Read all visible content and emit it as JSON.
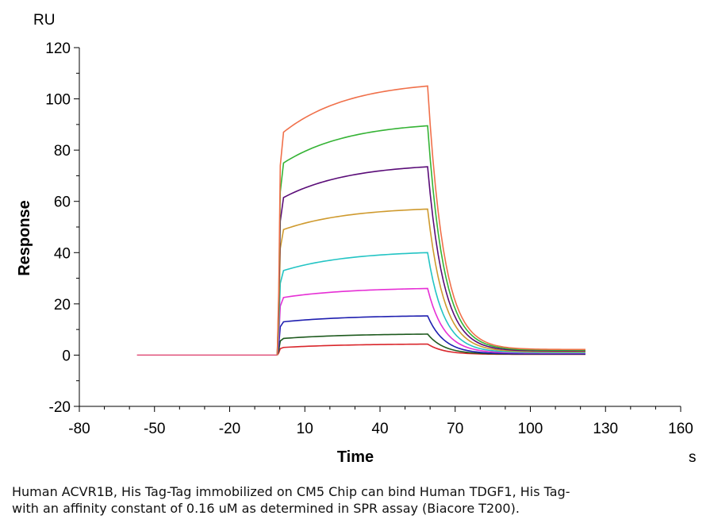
{
  "chart_data": {
    "type": "line",
    "title": "",
    "xlabel": "Time",
    "ylabel": "Response",
    "x_unit": "s",
    "y_unit": "RU",
    "xlim": [
      -80,
      160
    ],
    "ylim": [
      -20,
      120
    ],
    "xticks": [
      -80,
      -50,
      -20,
      10,
      40,
      70,
      100,
      130,
      160
    ],
    "yticks": [
      -20,
      0,
      20,
      40,
      60,
      80,
      100,
      120
    ],
    "grid": false,
    "legend": "none",
    "baseline": {
      "x_start": -57,
      "x_end": -1,
      "y": 0
    },
    "injection": {
      "start": -1,
      "end": 59,
      "x_end": 122
    },
    "series": [
      {
        "color": "#d9262b",
        "y_start": 3.0,
        "y_end": 4.3,
        "residual": 0.3
      },
      {
        "color": "#1e5a1e",
        "y_start": 6.5,
        "y_end": 8.2,
        "residual": 0.4
      },
      {
        "color": "#1f1fb0",
        "y_start": 13.0,
        "y_end": 15.3,
        "residual": 0.5
      },
      {
        "color": "#e62fd5",
        "y_start": 22.5,
        "y_end": 26.0,
        "residual": 0.8
      },
      {
        "color": "#23c4c4",
        "y_start": 33.0,
        "y_end": 40.0,
        "residual": 1.0
      },
      {
        "color": "#cf9a2e",
        "y_start": 49.0,
        "y_end": 57.0,
        "residual": 1.3
      },
      {
        "color": "#5a0c78",
        "y_start": 61.5,
        "y_end": 73.5,
        "residual": 1.6
      },
      {
        "color": "#35b335",
        "y_start": 75.0,
        "y_end": 89.5,
        "residual": 1.9
      },
      {
        "color": "#f0704a",
        "y_start": 87.0,
        "y_end": 105.0,
        "residual": 2.2
      }
    ]
  },
  "caption": {
    "line1": "Human ACVR1B, His Tag-Tag immobilized on CM5 Chip can bind Human TDGF1, His Tag-",
    "line2": "with an affinity constant of 0.16 uM as determined in SPR assay (Biacore T200)."
  }
}
